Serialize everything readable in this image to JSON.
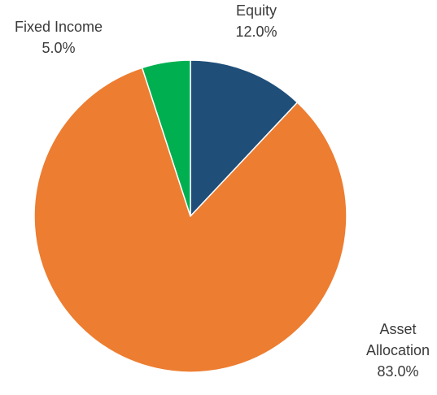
{
  "chart_data": {
    "type": "pie",
    "title": "",
    "start_angle_deg": 0,
    "direction": "clockwise",
    "slices": [
      {
        "name": "Equity",
        "label_lines": [
          "Equity"
        ],
        "value": 12.0,
        "value_label": "12.0%",
        "color": "#1f4e79"
      },
      {
        "name": "Asset Allocation",
        "label_lines": [
          "Asset",
          "Allocation"
        ],
        "value": 83.0,
        "value_label": "83.0%",
        "color": "#ed7d31"
      },
      {
        "name": "Fixed Income",
        "label_lines": [
          "Fixed Income"
        ],
        "value": 5.0,
        "value_label": "5.0%",
        "color": "#00b050"
      }
    ]
  }
}
